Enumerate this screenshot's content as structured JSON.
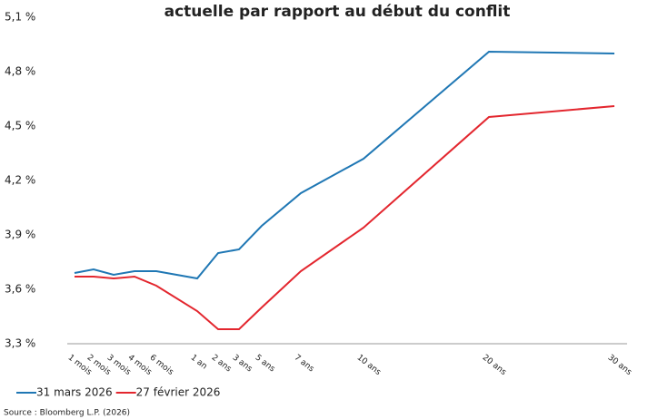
{
  "chart_data": {
    "type": "line",
    "title": "actuelle par rapport au début du conflit",
    "source": "Source : Bloomberg L.P. (2026)",
    "categories": [
      "1 mois",
      "2 mois",
      "3 mois",
      "4 mois",
      "6 mois",
      "1 an",
      "2 ans",
      "3 ans",
      "5 ans",
      "7 ans",
      "10 ans",
      "20 ans",
      "30 ans"
    ],
    "series": [
      {
        "name": "31 mars 2026",
        "color": "#1f77b4",
        "values": [
          3.69,
          3.71,
          3.68,
          3.7,
          3.7,
          3.66,
          3.8,
          3.82,
          3.95,
          4.13,
          4.32,
          4.91,
          4.9
        ]
      },
      {
        "name": "27 février 2026",
        "color": "#e3262e",
        "values": [
          3.67,
          3.67,
          3.66,
          3.67,
          3.62,
          3.48,
          3.38,
          3.38,
          3.5,
          3.7,
          3.94,
          4.55,
          4.61
        ]
      }
    ],
    "ylim": [
      3.3,
      5.1
    ],
    "yticks": [
      {
        "value": 3.3,
        "label": "3,3 %"
      },
      {
        "value": 3.6,
        "label": "3,6 %"
      },
      {
        "value": 3.9,
        "label": "3,9 %"
      },
      {
        "value": 4.2,
        "label": "4,2 %"
      },
      {
        "value": 4.5,
        "label": "4,5 %"
      },
      {
        "value": 4.8,
        "label": "4,8 %"
      },
      {
        "value": 5.1,
        "label": "5,1 %"
      }
    ],
    "grid": false,
    "legend": "bottom-left"
  }
}
